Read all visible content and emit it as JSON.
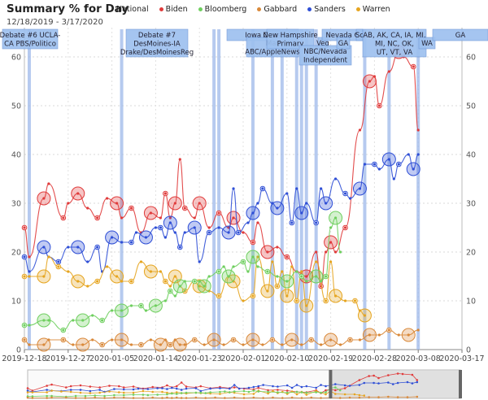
{
  "header": {
    "title": "Summary % for Day",
    "date_range": "12/18/2019 - 3/17/2020",
    "scope": "National"
  },
  "chart_data": {
    "type": "scatter",
    "x_tick_labels": [
      "2019-12-18",
      "2019-12-27",
      "2020-01-05",
      "2020-01-14",
      "2020-01-23",
      "2020-02-01",
      "2020-02-10",
      "2020-02-19",
      "2020-02-28",
      "2020-03-08",
      "2020-03-17"
    ],
    "y_ticks": [
      0,
      10,
      20,
      30,
      40,
      50,
      60
    ],
    "x_range_days": [
      0,
      90
    ],
    "ylim": [
      0,
      66
    ],
    "grid": true,
    "legend_placement": "top",
    "series": [
      {
        "name": "Biden",
        "color": "#e03b3b",
        "points": [
          [
            0,
            25
          ],
          [
            1,
            19
          ],
          [
            4,
            31
          ],
          [
            5,
            34
          ],
          [
            8,
            27
          ],
          [
            9,
            30
          ],
          [
            11,
            32
          ],
          [
            13,
            29
          ],
          [
            15,
            27
          ],
          [
            17,
            31
          ],
          [
            19,
            30
          ],
          [
            20,
            27
          ],
          [
            22,
            29
          ],
          [
            24,
            24
          ],
          [
            26,
            28
          ],
          [
            28,
            27
          ],
          [
            29,
            32
          ],
          [
            30,
            27
          ],
          [
            31,
            30
          ],
          [
            32,
            39
          ],
          [
            33,
            29
          ],
          [
            35,
            27
          ],
          [
            36,
            30
          ],
          [
            38,
            25
          ],
          [
            40,
            28
          ],
          [
            42,
            25
          ],
          [
            43,
            27
          ],
          [
            45,
            24
          ],
          [
            47,
            22
          ],
          [
            48,
            26
          ],
          [
            50,
            20
          ],
          [
            52,
            21
          ],
          [
            54,
            19
          ],
          [
            56,
            16
          ],
          [
            58,
            15
          ],
          [
            60,
            20
          ],
          [
            61,
            13
          ],
          [
            62,
            20
          ],
          [
            63,
            22
          ],
          [
            64,
            20
          ],
          [
            66,
            25
          ],
          [
            69,
            45
          ],
          [
            71,
            55
          ],
          [
            72,
            56
          ],
          [
            73,
            50
          ],
          [
            75,
            57
          ],
          [
            77,
            61
          ],
          [
            78,
            60
          ],
          [
            80,
            58
          ],
          [
            81,
            45
          ]
        ]
      },
      {
        "name": "Sanders",
        "color": "#2f4fd6",
        "points": [
          [
            0,
            19
          ],
          [
            1,
            16
          ],
          [
            4,
            21
          ],
          [
            5,
            19
          ],
          [
            7,
            18
          ],
          [
            9,
            21
          ],
          [
            11,
            21
          ],
          [
            13,
            18
          ],
          [
            15,
            21
          ],
          [
            16,
            16
          ],
          [
            18,
            23
          ],
          [
            20,
            22
          ],
          [
            22,
            22
          ],
          [
            23,
            24
          ],
          [
            25,
            23
          ],
          [
            27,
            25
          ],
          [
            28,
            25
          ],
          [
            29,
            23
          ],
          [
            30,
            26
          ],
          [
            31,
            24
          ],
          [
            32,
            21
          ],
          [
            33,
            24
          ],
          [
            35,
            25
          ],
          [
            36,
            18
          ],
          [
            38,
            24
          ],
          [
            40,
            25
          ],
          [
            42,
            24
          ],
          [
            43,
            33
          ],
          [
            44,
            24
          ],
          [
            46,
            26
          ],
          [
            47,
            28
          ],
          [
            48,
            30
          ],
          [
            49,
            33
          ],
          [
            51,
            30
          ],
          [
            52,
            29
          ],
          [
            54,
            32
          ],
          [
            55,
            26
          ],
          [
            56,
            33
          ],
          [
            57,
            28
          ],
          [
            58,
            30
          ],
          [
            60,
            26
          ],
          [
            61,
            33
          ],
          [
            62,
            30
          ],
          [
            64,
            35
          ],
          [
            66,
            32
          ],
          [
            67,
            31
          ],
          [
            69,
            33
          ],
          [
            70,
            38
          ],
          [
            72,
            38
          ],
          [
            73,
            37
          ],
          [
            75,
            39
          ],
          [
            76,
            35
          ],
          [
            77,
            38
          ],
          [
            79,
            40
          ],
          [
            80,
            37
          ],
          [
            81,
            40
          ]
        ]
      },
      {
        "name": "Warren",
        "color": "#e6a520",
        "points": [
          [
            0,
            15
          ],
          [
            1,
            15
          ],
          [
            4,
            15
          ],
          [
            5,
            19
          ],
          [
            7,
            17
          ],
          [
            9,
            16
          ],
          [
            11,
            14
          ],
          [
            13,
            13
          ],
          [
            15,
            14
          ],
          [
            17,
            17
          ],
          [
            19,
            15
          ],
          [
            20,
            14
          ],
          [
            22,
            14
          ],
          [
            24,
            18
          ],
          [
            26,
            16
          ],
          [
            28,
            16
          ],
          [
            29,
            14
          ],
          [
            30,
            13
          ],
          [
            31,
            15
          ],
          [
            32,
            13
          ],
          [
            33,
            12
          ],
          [
            35,
            14
          ],
          [
            36,
            13
          ],
          [
            38,
            12
          ],
          [
            40,
            11
          ],
          [
            42,
            15
          ],
          [
            43,
            14
          ],
          [
            45,
            10
          ],
          [
            47,
            11
          ],
          [
            48,
            19
          ],
          [
            50,
            12
          ],
          [
            51,
            18
          ],
          [
            52,
            13
          ],
          [
            53,
            16
          ],
          [
            54,
            11
          ],
          [
            55,
            17
          ],
          [
            56,
            10
          ],
          [
            57,
            16
          ],
          [
            58,
            9
          ],
          [
            60,
            18
          ],
          [
            62,
            10
          ],
          [
            63,
            18
          ],
          [
            64,
            11
          ],
          [
            66,
            10
          ],
          [
            68,
            10
          ],
          [
            69,
            8
          ],
          [
            70,
            7
          ]
        ]
      },
      {
        "name": "Bloomberg",
        "color": "#6fcf5f",
        "points": [
          [
            0,
            5
          ],
          [
            1,
            5
          ],
          [
            4,
            6
          ],
          [
            5,
            6
          ],
          [
            8,
            4
          ],
          [
            10,
            6
          ],
          [
            12,
            6
          ],
          [
            14,
            7
          ],
          [
            16,
            6
          ],
          [
            18,
            8
          ],
          [
            20,
            8
          ],
          [
            22,
            9
          ],
          [
            24,
            9
          ],
          [
            25,
            8
          ],
          [
            27,
            9
          ],
          [
            29,
            10
          ],
          [
            30,
            12
          ],
          [
            31,
            11
          ],
          [
            32,
            13
          ],
          [
            33,
            14
          ],
          [
            35,
            14
          ],
          [
            36,
            14
          ],
          [
            37,
            13
          ],
          [
            38,
            15
          ],
          [
            40,
            16
          ],
          [
            41,
            17
          ],
          [
            42,
            15
          ],
          [
            43,
            17
          ],
          [
            45,
            18
          ],
          [
            46,
            16
          ],
          [
            47,
            19
          ],
          [
            48,
            17
          ],
          [
            50,
            16
          ],
          [
            52,
            15
          ],
          [
            54,
            14
          ],
          [
            56,
            16
          ],
          [
            57,
            15
          ],
          [
            58,
            14
          ],
          [
            60,
            15
          ],
          [
            61,
            14
          ],
          [
            62,
            15
          ],
          [
            63,
            25
          ],
          [
            64,
            27
          ],
          [
            65,
            20
          ]
        ]
      },
      {
        "name": "Gabbard",
        "color": "#d9893a",
        "points": [
          [
            0,
            2
          ],
          [
            1,
            1
          ],
          [
            4,
            1
          ],
          [
            5,
            2
          ],
          [
            8,
            2
          ],
          [
            10,
            1
          ],
          [
            12,
            1
          ],
          [
            14,
            2
          ],
          [
            16,
            1
          ],
          [
            18,
            2
          ],
          [
            20,
            2
          ],
          [
            22,
            1
          ],
          [
            24,
            1
          ],
          [
            26,
            2
          ],
          [
            28,
            1
          ],
          [
            29,
            2
          ],
          [
            30,
            1
          ],
          [
            31,
            2
          ],
          [
            32,
            1
          ],
          [
            33,
            1
          ],
          [
            35,
            2
          ],
          [
            37,
            1
          ],
          [
            39,
            2
          ],
          [
            41,
            1
          ],
          [
            43,
            2
          ],
          [
            45,
            1
          ],
          [
            47,
            2
          ],
          [
            49,
            1
          ],
          [
            51,
            2
          ],
          [
            53,
            1
          ],
          [
            55,
            2
          ],
          [
            57,
            1
          ],
          [
            59,
            2
          ],
          [
            61,
            1
          ],
          [
            63,
            2
          ],
          [
            65,
            1
          ],
          [
            67,
            2
          ],
          [
            69,
            2
          ],
          [
            71,
            3
          ],
          [
            73,
            3
          ],
          [
            75,
            4
          ],
          [
            77,
            3
          ],
          [
            79,
            3
          ],
          [
            81,
            4
          ]
        ]
      }
    ],
    "event_lines": [
      {
        "x": 1,
        "label": "Debate #6 UCLA-CA PBS/Politico"
      },
      {
        "x": 20,
        "label": "Debate #7 DesMoines-IA Drake/DesMoinesReg"
      },
      {
        "x": 39,
        "label": "Iowa Caucus"
      },
      {
        "x": 40,
        "label": "Manchester Debate ABC/AppleNews"
      },
      {
        "x": 47,
        "label": "New Hampshire Primary"
      },
      {
        "x": 51,
        "label": "Las Vegas Debate NBC/Nevada Independent"
      },
      {
        "x": 53,
        "label": "Nevada Caucus"
      },
      {
        "x": 56,
        "label": "South Carolina Debate"
      },
      {
        "x": 57,
        "label": "SC"
      },
      {
        "x": 58,
        "label": "AL, AR, CA, CO, ME, MA, MN, NC, OK, TN, UT, VT, VA"
      },
      {
        "x": 60,
        "label": "AS"
      },
      {
        "x": 70,
        "label": "WA"
      },
      {
        "x": 75,
        "label": "ID, MI, MS, MO, ND, WA"
      },
      {
        "x": 81,
        "label": "GA"
      }
    ],
    "event_label_visible_text": [
      "Debate #6 UCLA-",
      "CA PBS/Politico",
      "Debate #7",
      "DesMoines-IA",
      "Drake/DesMoinesReg",
      "Iowa Caus",
      "Mar",
      "ABC/AppleNews",
      "New Hampshire",
      "Primary",
      "Veg",
      "NBC/Nevada",
      "Independent",
      "Nevada C",
      "GA",
      "Sc",
      "AB, AK, CA, IA, MI,",
      "MI, NC, OK,",
      "UT, VT, VA",
      "WA",
      "GA"
    ],
    "navigator_window": [
      63,
      90
    ]
  }
}
